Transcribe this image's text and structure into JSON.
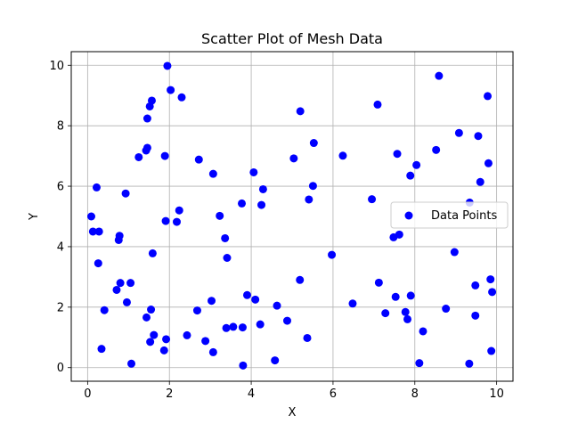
{
  "chart_data": {
    "type": "scatter",
    "title": "Scatter Plot of Mesh Data",
    "xlabel": "X",
    "ylabel": "Y",
    "xlim": [
      -0.4,
      10.4
    ],
    "ylim": [
      -0.45,
      10.45
    ],
    "xticks": [
      0,
      2,
      4,
      6,
      8,
      10
    ],
    "yticks": [
      0,
      2,
      4,
      6,
      8,
      10
    ],
    "xtick_labels": [
      "0",
      "2",
      "4",
      "6",
      "8",
      "10"
    ],
    "ytick_labels": [
      "0",
      "2",
      "4",
      "6",
      "8",
      "10"
    ],
    "grid": true,
    "legend_position": "center-right",
    "series": [
      {
        "name": "Data Points",
        "color": "#0000ff",
        "marker": "circle",
        "points": [
          [
            0.09,
            5.0
          ],
          [
            0.13,
            4.5
          ],
          [
            0.22,
            5.96
          ],
          [
            0.26,
            3.45
          ],
          [
            0.28,
            4.5
          ],
          [
            0.34,
            0.62
          ],
          [
            0.41,
            1.9
          ],
          [
            0.71,
            2.57
          ],
          [
            0.76,
            4.22
          ],
          [
            0.78,
            4.36
          ],
          [
            0.8,
            2.8
          ],
          [
            0.93,
            5.76
          ],
          [
            0.96,
            2.16
          ],
          [
            1.05,
            2.8
          ],
          [
            1.07,
            0.13
          ],
          [
            1.25,
            6.96
          ],
          [
            1.44,
            1.66
          ],
          [
            1.43,
            7.18
          ],
          [
            1.46,
            7.27
          ],
          [
            1.46,
            8.24
          ],
          [
            1.52,
            8.64
          ],
          [
            1.53,
            0.85
          ],
          [
            1.55,
            1.92
          ],
          [
            1.57,
            8.83
          ],
          [
            1.59,
            3.78
          ],
          [
            1.62,
            1.08
          ],
          [
            1.87,
            0.57
          ],
          [
            1.89,
            7.0
          ],
          [
            1.91,
            4.85
          ],
          [
            1.92,
            0.94
          ],
          [
            1.95,
            9.98
          ],
          [
            2.03,
            9.18
          ],
          [
            2.18,
            4.82
          ],
          [
            2.24,
            5.2
          ],
          [
            2.3,
            8.94
          ],
          [
            2.43,
            1.07
          ],
          [
            2.68,
            1.89
          ],
          [
            2.72,
            6.88
          ],
          [
            2.88,
            0.88
          ],
          [
            3.03,
            2.21
          ],
          [
            3.07,
            6.41
          ],
          [
            3.07,
            0.51
          ],
          [
            3.23,
            5.02
          ],
          [
            3.36,
            4.28
          ],
          [
            3.39,
            1.31
          ],
          [
            3.41,
            3.63
          ],
          [
            3.56,
            1.35
          ],
          [
            3.77,
            5.43
          ],
          [
            3.79,
            1.33
          ],
          [
            3.8,
            0.07
          ],
          [
            3.9,
            2.4
          ],
          [
            4.06,
            6.46
          ],
          [
            4.1,
            2.25
          ],
          [
            4.22,
            1.43
          ],
          [
            4.25,
            5.38
          ],
          [
            4.29,
            5.9
          ],
          [
            4.58,
            0.24
          ],
          [
            4.63,
            2.05
          ],
          [
            4.88,
            1.55
          ],
          [
            5.04,
            6.92
          ],
          [
            5.19,
            2.9
          ],
          [
            5.2,
            8.48
          ],
          [
            5.37,
            0.98
          ],
          [
            5.41,
            5.56
          ],
          [
            5.51,
            6.01
          ],
          [
            5.53,
            7.43
          ],
          [
            5.97,
            3.73
          ],
          [
            6.24,
            7.01
          ],
          [
            6.48,
            2.12
          ],
          [
            6.95,
            5.57
          ],
          [
            7.09,
            8.7
          ],
          [
            7.12,
            2.81
          ],
          [
            7.28,
            1.8
          ],
          [
            7.48,
            4.31
          ],
          [
            7.53,
            2.34
          ],
          [
            7.57,
            7.07
          ],
          [
            7.62,
            4.4
          ],
          [
            7.77,
            1.84
          ],
          [
            7.82,
            1.6
          ],
          [
            7.89,
            6.35
          ],
          [
            7.9,
            2.38
          ],
          [
            8.04,
            6.7
          ],
          [
            8.11,
            0.15
          ],
          [
            8.2,
            1.2
          ],
          [
            8.52,
            7.2
          ],
          [
            8.59,
            9.65
          ],
          [
            8.76,
            1.95
          ],
          [
            8.97,
            3.82
          ],
          [
            9.08,
            7.76
          ],
          [
            9.33,
            0.13
          ],
          [
            9.34,
            5.46
          ],
          [
            9.48,
            2.72
          ],
          [
            9.48,
            1.72
          ],
          [
            9.55,
            7.66
          ],
          [
            9.6,
            6.14
          ],
          [
            9.78,
            8.98
          ],
          [
            9.8,
            6.76
          ],
          [
            9.85,
            2.92
          ],
          [
            9.87,
            0.55
          ],
          [
            9.89,
            2.5
          ]
        ]
      }
    ]
  }
}
